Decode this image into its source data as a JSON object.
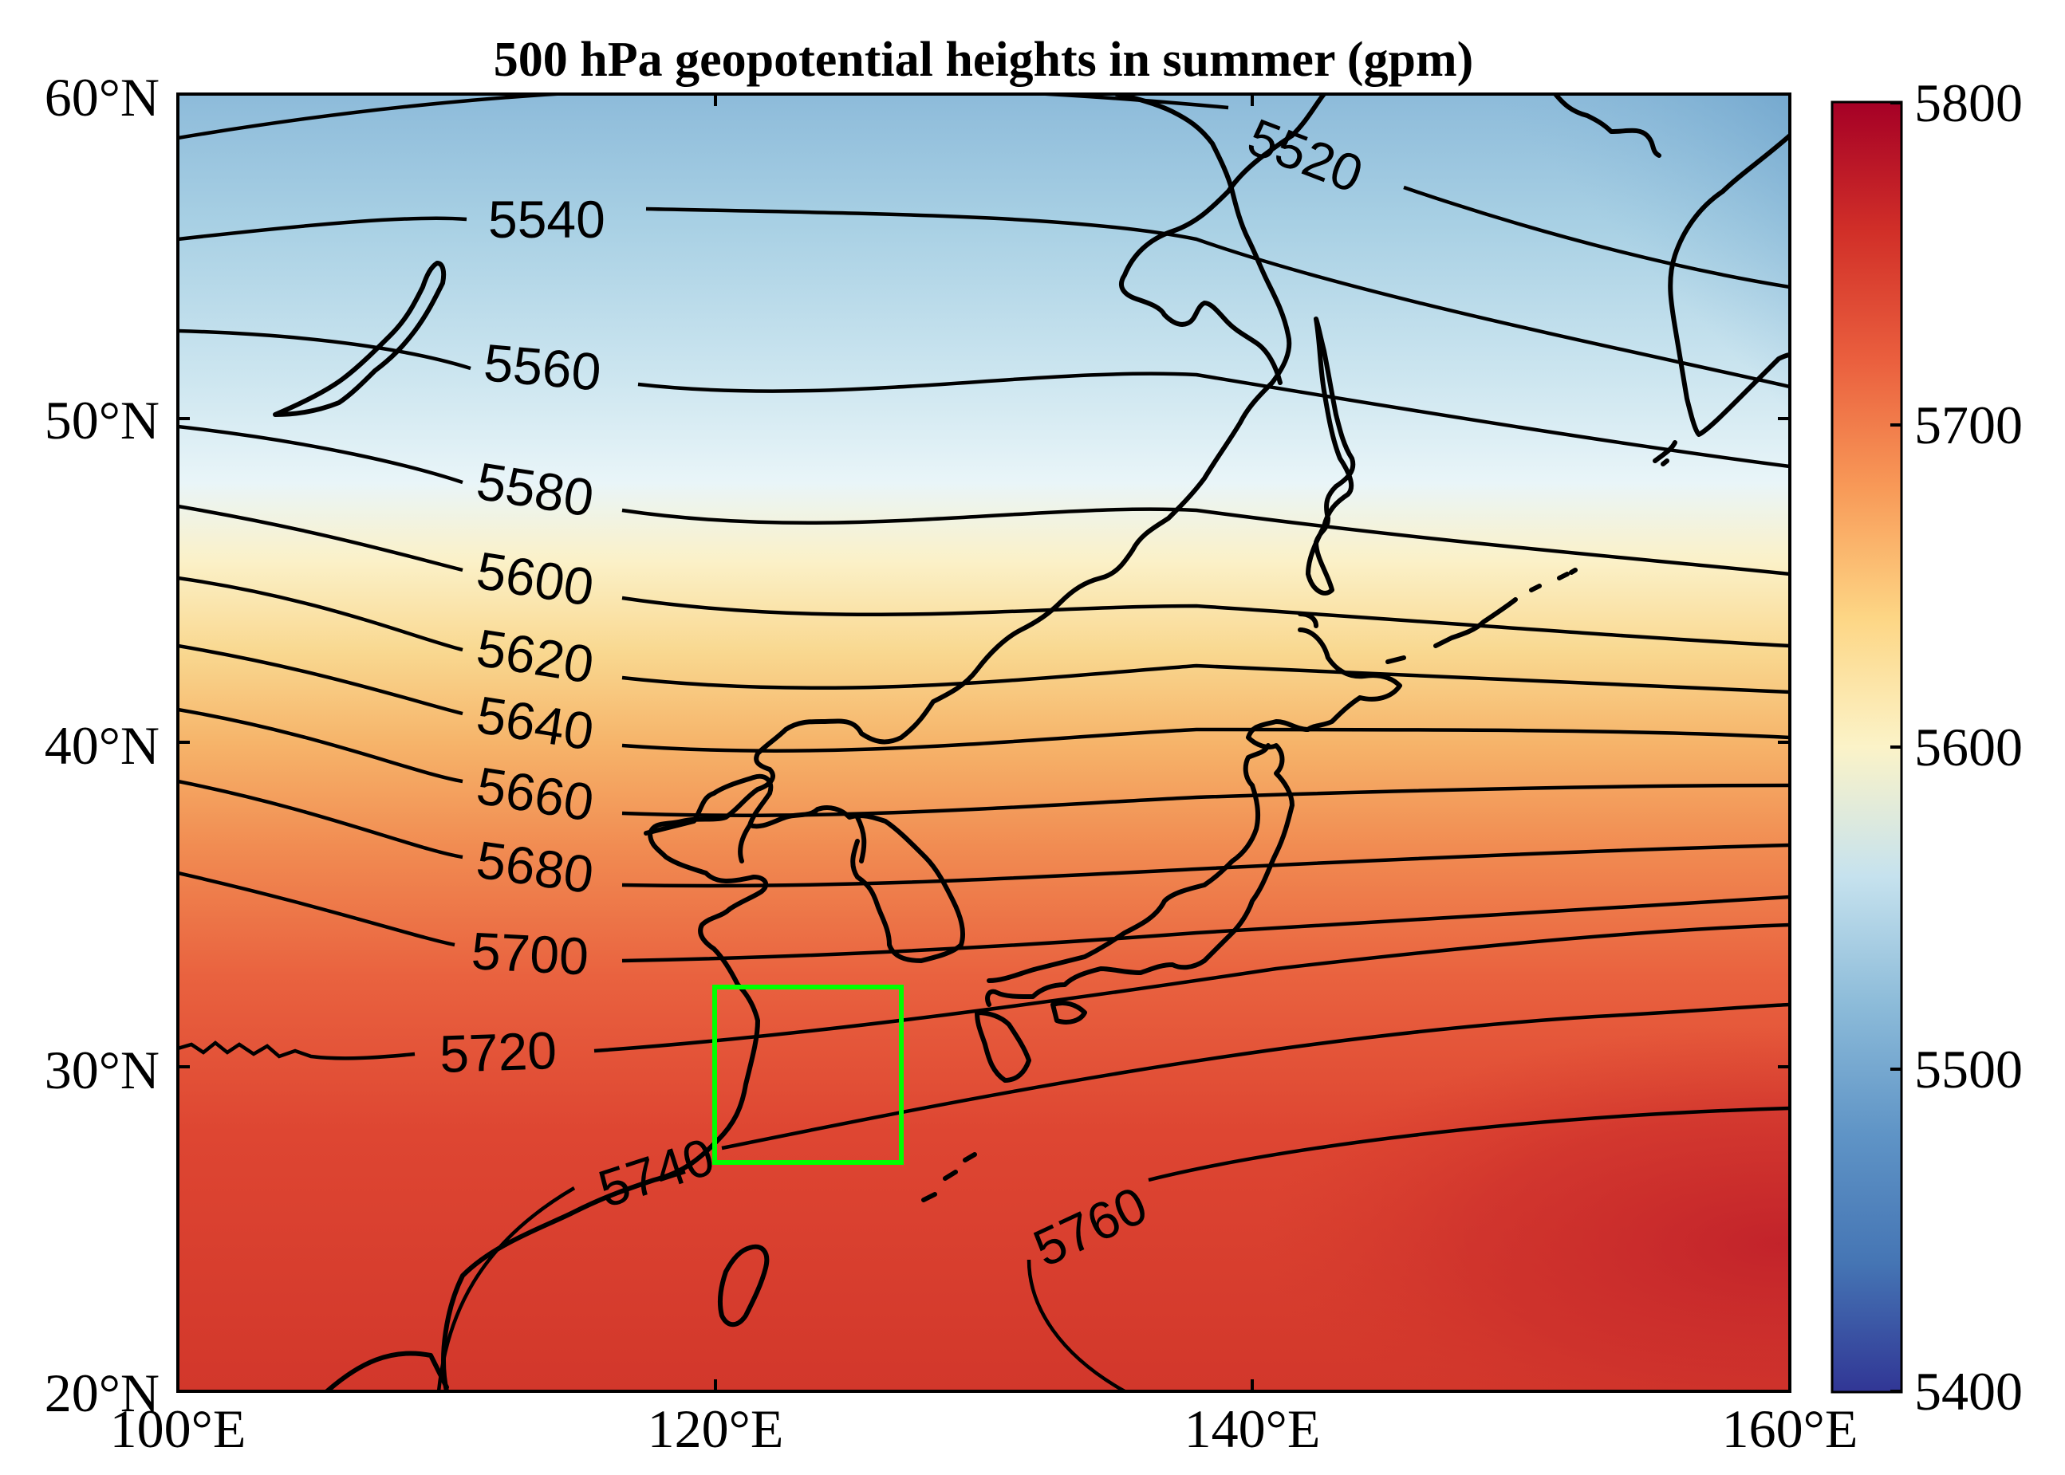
{
  "title": "500 hPa geopotential heights in summer (gpm)",
  "map": {
    "lon_range": [
      100,
      160
    ],
    "lat_range": [
      20,
      60
    ],
    "x_ticks": [
      {
        "value": 100,
        "label": "100°E"
      },
      {
        "value": 120,
        "label": "120°E"
      },
      {
        "value": 140,
        "label": "140°E"
      },
      {
        "value": 160,
        "label": "160°E"
      }
    ],
    "y_ticks": [
      {
        "value": 60,
        "label": "60°N"
      },
      {
        "value": 50,
        "label": "50°N"
      },
      {
        "value": 40,
        "label": "40°N"
      },
      {
        "value": 30,
        "label": "30°N"
      },
      {
        "value": 20,
        "label": "20°N"
      }
    ],
    "contour_labels": [
      "5520",
      "5540",
      "5560",
      "5580",
      "5600",
      "5620",
      "5640",
      "5660",
      "5680",
      "5700",
      "5720",
      "5740",
      "5760"
    ],
    "highlight_box": {
      "lon": [
        120,
        127
      ],
      "lat": [
        28,
        33.5
      ],
      "color": "#00ff00"
    }
  },
  "colorbar": {
    "range": [
      5400,
      5800
    ],
    "ticks": [
      "5800",
      "5700",
      "5600",
      "5500",
      "5400"
    ],
    "colormap": "RdYlBu_r",
    "colors": {
      "low": "#313695",
      "mid": "#fbf3c8",
      "high": "#a50026"
    }
  }
}
